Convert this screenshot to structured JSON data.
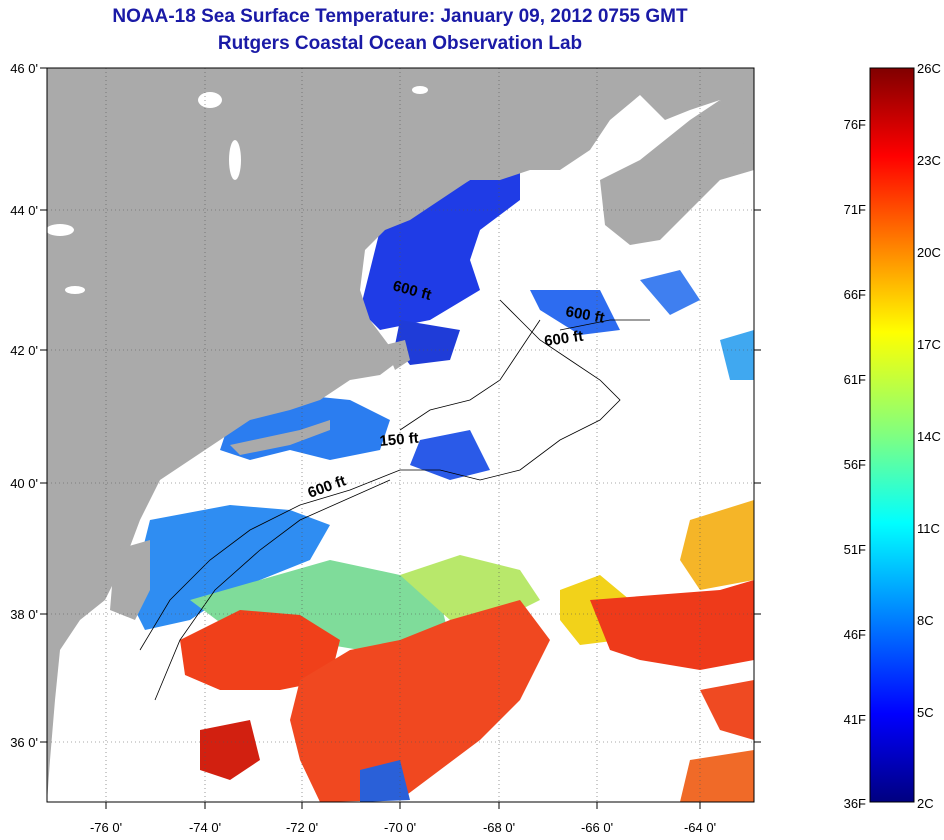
{
  "title": "NOAA-18 Sea Surface Temperature:  January 09, 2012 0755 GMT",
  "subtitle": "Rutgers Coastal Ocean Observation Lab",
  "map": {
    "lat_labels": [
      "46 0'",
      "44 0'",
      "42 0'",
      "40 0'",
      "38 0'",
      "36 0'"
    ],
    "lon_labels": [
      "-76 0'",
      "-74 0'",
      "-72 0'",
      "-70 0'",
      "-68 0'",
      "-66 0'",
      "-64 0'"
    ],
    "contour_labels": [
      "600 ft",
      "600 ft",
      "600 ft",
      "150 ft",
      "600 ft"
    ],
    "colors": {
      "land": "#aaaaaa",
      "no_data": "#ffffff",
      "contour": "#000000"
    }
  },
  "colorbar": {
    "fahrenheit_labels": [
      "76F",
      "71F",
      "66F",
      "61F",
      "56F",
      "51F",
      "46F",
      "41F",
      "36F"
    ],
    "celsius_labels": [
      "26C",
      "23C",
      "20C",
      "17C",
      "14C",
      "11C",
      "8C",
      "5C",
      "2C"
    ],
    "colors": [
      "#800000",
      "#ff0000",
      "#ff8000",
      "#ffff00",
      "#80ff80",
      "#00ffff",
      "#0080ff",
      "#0000ff",
      "#000080"
    ]
  }
}
